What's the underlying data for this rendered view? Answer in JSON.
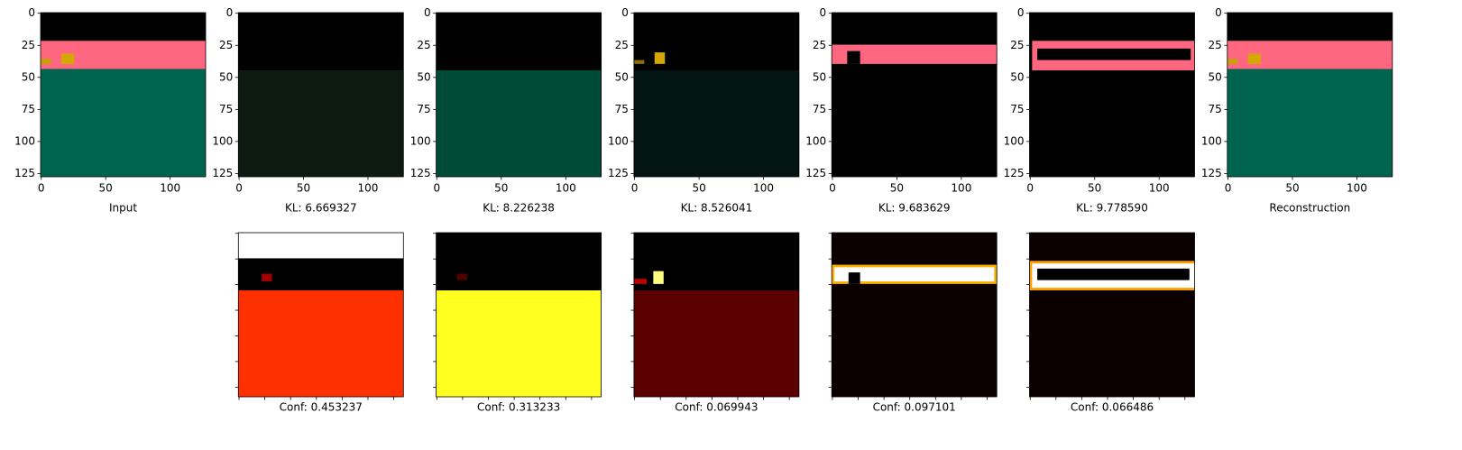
{
  "chart_data": [
    {
      "type": "image",
      "xlabel": "Input",
      "xlim": [
        -0.5,
        127.5
      ],
      "ylim": [
        127.5,
        -0.5
      ],
      "xticks": [
        0,
        50,
        100
      ],
      "yticks": [
        0,
        25,
        50,
        75,
        100,
        125
      ]
    },
    {
      "type": "image",
      "xlabel": "KL: 6.669327",
      "xlim": [
        -0.5,
        127.5
      ],
      "ylim": [
        127.5,
        -0.5
      ],
      "xticks": [
        0,
        50,
        100
      ],
      "yticks": [
        0,
        25,
        50,
        75,
        100,
        125
      ]
    },
    {
      "type": "image",
      "xlabel": "KL: 8.226238",
      "xlim": [
        -0.5,
        127.5
      ],
      "ylim": [
        127.5,
        -0.5
      ],
      "xticks": [
        0,
        50,
        100
      ],
      "yticks": [
        0,
        25,
        50,
        75,
        100,
        125
      ]
    },
    {
      "type": "image",
      "xlabel": "KL: 8.526041",
      "xlim": [
        -0.5,
        127.5
      ],
      "ylim": [
        127.5,
        -0.5
      ],
      "xticks": [
        0,
        50,
        100
      ],
      "yticks": [
        0,
        25,
        50,
        75,
        100,
        125
      ]
    },
    {
      "type": "image",
      "xlabel": "KL: 9.683629",
      "xlim": [
        -0.5,
        127.5
      ],
      "ylim": [
        127.5,
        -0.5
      ],
      "xticks": [
        0,
        50,
        100
      ],
      "yticks": [
        0,
        25,
        50,
        75,
        100,
        125
      ]
    },
    {
      "type": "image",
      "xlabel": "KL: 9.778590",
      "xlim": [
        -0.5,
        127.5
      ],
      "ylim": [
        127.5,
        -0.5
      ],
      "xticks": [
        0,
        50,
        100
      ],
      "yticks": [
        0,
        25,
        50,
        75,
        100,
        125
      ]
    },
    {
      "type": "image",
      "xlabel": "Reconstruction",
      "xlim": [
        -0.5,
        127.5
      ],
      "ylim": [
        127.5,
        -0.5
      ],
      "xticks": [
        0,
        50,
        100
      ],
      "yticks": [
        0,
        25,
        50,
        75,
        100,
        125
      ]
    },
    {
      "type": "image",
      "xlabel": "Conf: 0.453237",
      "xlim": [
        -0.5,
        127.5
      ],
      "ylim": [
        127.5,
        -0.5
      ],
      "xticks": [
        0,
        20,
        40,
        60,
        80,
        100,
        120
      ],
      "yticks": [
        0,
        20,
        40,
        60,
        80,
        100,
        120
      ],
      "tick_labels": false
    },
    {
      "type": "image",
      "xlabel": "Conf: 0.313233",
      "xlim": [
        -0.5,
        127.5
      ],
      "ylim": [
        127.5,
        -0.5
      ],
      "xticks": [
        0,
        20,
        40,
        60,
        80,
        100,
        120
      ],
      "yticks": [
        0,
        20,
        40,
        60,
        80,
        100,
        120
      ],
      "tick_labels": false
    },
    {
      "type": "image",
      "xlabel": "Conf: 0.069943",
      "xlim": [
        -0.5,
        127.5
      ],
      "ylim": [
        127.5,
        -0.5
      ],
      "xticks": [
        0,
        20,
        40,
        60,
        80,
        100,
        120
      ],
      "yticks": [
        0,
        20,
        40,
        60,
        80,
        100,
        120
      ],
      "tick_labels": false
    },
    {
      "type": "image",
      "xlabel": "Conf: 0.097101",
      "xlim": [
        -0.5,
        127.5
      ],
      "ylim": [
        127.5,
        -0.5
      ],
      "xticks": [
        0,
        20,
        40,
        60,
        80,
        100,
        120
      ],
      "yticks": [
        0,
        20,
        40,
        60,
        80,
        100,
        120
      ],
      "tick_labels": false
    },
    {
      "type": "image",
      "xlabel": "Conf: 0.066486",
      "xlim": [
        -0.5,
        127.5
      ],
      "ylim": [
        127.5,
        -0.5
      ],
      "xticks": [
        0,
        20,
        40,
        60,
        80,
        100,
        120
      ],
      "yticks": [
        0,
        20,
        40,
        60,
        80,
        100,
        120
      ],
      "tick_labels": false
    }
  ]
}
